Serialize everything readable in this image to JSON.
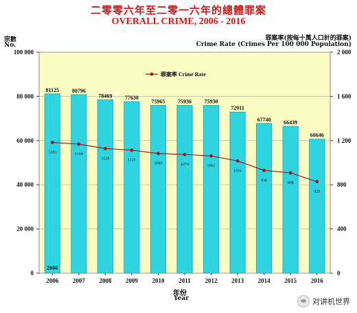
{
  "title_cn": "二零零六年至二零一六年的總體罪案",
  "title_en": "OVERALL CRIME, 2006 - 2016",
  "left_axis_label_cn": "宗數",
  "left_axis_label_en": "No.",
  "right_axis_label_cn": "罪案率(按每十萬人口計的罪案)",
  "right_axis_label_en": "Crime Rate (Crimes Per 100 000 Population)",
  "x_axis_label_cn": "年份",
  "x_axis_label_en": "Year",
  "watermark": "对讲机世界",
  "colors": {
    "bar": "#2ed4e0",
    "bar_edge": "#1aa3b0",
    "plot_bg": "#fafcc4",
    "line": "#9a1a1a",
    "title": "#cc1a1a"
  },
  "chart_data": {
    "type": "bar",
    "categories": [
      "2006",
      "2007",
      "2008",
      "2009",
      "2010",
      "2011",
      "2012",
      "2013",
      "2014",
      "2015",
      "2016"
    ],
    "series": [
      {
        "name": "",
        "type": "bar",
        "axis": "left",
        "values": [
          81125,
          80796,
          78469,
          77630,
          75965,
          75936,
          75930,
          72911,
          67740,
          66439,
          60646
        ],
        "labels": [
          "81125",
          "80796",
          "78469",
          "77630",
          "75965",
          "75936",
          "75930",
          "72911",
          "67740",
          "66439",
          "60646"
        ]
      },
      {
        "name": "罪案率 Crime Rate",
        "type": "line",
        "axis": "right",
        "values": [
          1183,
          1168,
          1128,
          1113,
          1083,
          1074,
          1061,
          1016,
          930,
          908,
          828
        ],
        "labels": [
          "1183",
          "1168",
          "1128",
          "1113",
          "1083",
          "1074",
          "1061",
          "1016",
          "930",
          "908",
          "828"
        ]
      }
    ],
    "first_bar_inner_label": "2006",
    "y_left": {
      "min": 0,
      "max": 100000,
      "ticks": [
        0,
        20000,
        40000,
        60000,
        80000,
        100000
      ],
      "tick_labels": [
        "0",
        "20 000",
        "40 000",
        "60 000",
        "80 000",
        "100 000"
      ]
    },
    "y_right": {
      "min": 0,
      "max": 2000,
      "ticks": [
        0,
        400,
        800,
        1200,
        1600,
        2000
      ],
      "tick_labels": [
        "0",
        "400",
        "800",
        "1 200",
        "1 600",
        "2 000"
      ]
    },
    "legend_position": "top-center",
    "grid": true
  }
}
